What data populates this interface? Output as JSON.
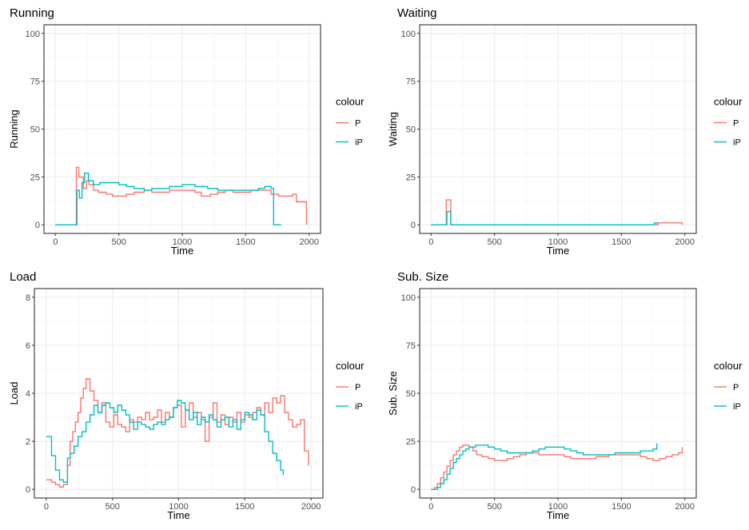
{
  "colors": {
    "P": "#F8766D",
    "iP": "#00BFC4"
  },
  "chart_data": [
    {
      "type": "line",
      "title": "Running",
      "xlabel": "Time",
      "ylabel": "Running",
      "xlim": [
        0,
        2000
      ],
      "ylim": [
        0,
        100
      ],
      "x_ticks": [
        0,
        500,
        1000,
        1500,
        2000
      ],
      "y_ticks": [
        0,
        25,
        50,
        75,
        100
      ],
      "grid": true,
      "legend": {
        "title": "colour",
        "position": "right",
        "entries": [
          "P",
          "iP"
        ]
      },
      "series": [
        {
          "name": "P",
          "color": "#F8766D",
          "step": true,
          "x": [
            0,
            150,
            165,
            185,
            220,
            245,
            265,
            300,
            340,
            400,
            450,
            500,
            560,
            620,
            700,
            760,
            830,
            900,
            980,
            1050,
            1100,
            1150,
            1220,
            1280,
            1340,
            1400,
            1480,
            1540,
            1620,
            1700,
            1760,
            1830,
            1870,
            1900,
            1980
          ],
          "y": [
            0,
            0,
            30,
            25,
            19,
            23,
            21,
            18,
            17,
            16,
            15,
            15,
            16,
            17,
            18,
            17,
            17,
            18,
            18,
            18,
            17,
            15,
            16,
            17,
            18,
            17,
            17,
            18,
            18,
            16,
            15,
            15,
            16,
            12,
            0
          ]
        },
        {
          "name": "iP",
          "color": "#00BFC4",
          "step": true,
          "x": [
            0,
            155,
            170,
            190,
            210,
            230,
            260,
            300,
            350,
            400,
            450,
            500,
            560,
            620,
            700,
            760,
            830,
            900,
            1000,
            1060,
            1100,
            1200,
            1280,
            1340,
            1400,
            1480,
            1540,
            1600,
            1650,
            1700,
            1720,
            1780
          ],
          "y": [
            0,
            0,
            18,
            14,
            22,
            27,
            23,
            21,
            22,
            22,
            22,
            21,
            20,
            19,
            18,
            19,
            19,
            20,
            21,
            21,
            20,
            19,
            18,
            18,
            18,
            18,
            18,
            19,
            20,
            19,
            0,
            0
          ]
        }
      ]
    },
    {
      "type": "line",
      "title": "Waiting",
      "xlabel": "Time",
      "ylabel": "Waiting",
      "xlim": [
        0,
        2000
      ],
      "ylim": [
        0,
        100
      ],
      "x_ticks": [
        0,
        500,
        1000,
        1500,
        2000
      ],
      "y_ticks": [
        0,
        25,
        50,
        75,
        100
      ],
      "grid": true,
      "legend": {
        "title": "colour",
        "position": "right",
        "entries": [
          "P",
          "iP"
        ]
      },
      "series": [
        {
          "name": "P",
          "color": "#F8766D",
          "step": true,
          "x": [
            0,
            120,
            155,
            1760,
            1790,
            1960,
            1980
          ],
          "y": [
            0,
            13,
            0,
            0,
            1,
            1,
            0
          ]
        },
        {
          "name": "iP",
          "color": "#00BFC4",
          "step": true,
          "x": [
            0,
            125,
            155,
            1760,
            1790
          ],
          "y": [
            0,
            7,
            0,
            1,
            1
          ]
        }
      ]
    },
    {
      "type": "line",
      "title": "Load",
      "xlabel": "Time",
      "ylabel": "Load",
      "xlim": [
        0,
        2000
      ],
      "ylim": [
        0,
        8
      ],
      "x_ticks": [
        0,
        500,
        1000,
        1500,
        2000
      ],
      "y_ticks": [
        0,
        2,
        4,
        6,
        8
      ],
      "grid": true,
      "legend": {
        "title": "colour",
        "position": "right",
        "entries": [
          "P",
          "iP"
        ]
      },
      "series": [
        {
          "name": "P",
          "color": "#F8766D",
          "step": true,
          "x": [
            0,
            40,
            70,
            100,
            130,
            160,
            180,
            200,
            220,
            240,
            260,
            280,
            300,
            330,
            360,
            390,
            420,
            450,
            480,
            510,
            540,
            570,
            600,
            630,
            660,
            690,
            720,
            750,
            780,
            810,
            840,
            870,
            900,
            930,
            960,
            990,
            1020,
            1050,
            1080,
            1110,
            1140,
            1170,
            1200,
            1230,
            1260,
            1290,
            1320,
            1350,
            1380,
            1410,
            1440,
            1470,
            1500,
            1530,
            1560,
            1590,
            1620,
            1650,
            1680,
            1710,
            1740,
            1770,
            1800,
            1830,
            1860,
            1890,
            1920,
            1950,
            1980
          ],
          "y": [
            0.4,
            0.3,
            0.2,
            0.1,
            0.2,
            1.0,
            2.0,
            2.4,
            2.8,
            3.2,
            3.8,
            4.2,
            4.6,
            4.1,
            3.7,
            3.2,
            3.6,
            2.8,
            2.6,
            3.1,
            2.7,
            2.6,
            2.4,
            2.9,
            2.8,
            3.0,
            2.9,
            3.2,
            2.9,
            3.0,
            3.3,
            2.8,
            3.2,
            3.0,
            3.4,
            3.5,
            2.6,
            3.3,
            3.6,
            3.0,
            3.2,
            2.9,
            2.0,
            3.0,
            3.6,
            2.8,
            3.1,
            2.7,
            3.0,
            2.8,
            3.2,
            2.8,
            3.1,
            3.0,
            3.2,
            3.4,
            3.1,
            3.6,
            3.2,
            3.8,
            3.6,
            3.9,
            3.2,
            2.9,
            2.6,
            2.7,
            2.9,
            1.6,
            1.0
          ]
        },
        {
          "name": "iP",
          "color": "#00BFC4",
          "step": true,
          "x": [
            0,
            40,
            70,
            100,
            130,
            160,
            180,
            210,
            240,
            270,
            300,
            330,
            360,
            390,
            420,
            450,
            480,
            510,
            540,
            570,
            600,
            630,
            660,
            690,
            720,
            750,
            780,
            810,
            840,
            870,
            900,
            930,
            960,
            990,
            1020,
            1050,
            1080,
            1110,
            1140,
            1170,
            1200,
            1230,
            1260,
            1290,
            1320,
            1350,
            1380,
            1410,
            1440,
            1470,
            1500,
            1530,
            1560,
            1590,
            1620,
            1650,
            1680,
            1710,
            1740,
            1770,
            1790
          ],
          "y": [
            2.2,
            1.4,
            0.8,
            0.4,
            0.3,
            1.3,
            1.5,
            1.8,
            2.2,
            2.4,
            2.8,
            3.1,
            3.5,
            3.2,
            3.5,
            3.6,
            3.4,
            3.2,
            3.5,
            3.3,
            3.1,
            2.8,
            2.5,
            2.8,
            2.7,
            2.6,
            2.5,
            2.7,
            2.8,
            2.7,
            2.9,
            3.0,
            3.4,
            3.7,
            3.6,
            3.3,
            2.9,
            3.2,
            2.7,
            3.0,
            2.8,
            3.1,
            2.9,
            2.6,
            2.9,
            3.0,
            2.6,
            2.9,
            2.5,
            2.9,
            3.2,
            3.1,
            2.9,
            3.3,
            3.1,
            2.4,
            2.0,
            1.5,
            1.2,
            0.8,
            0.6
          ]
        }
      ]
    },
    {
      "type": "line",
      "title": "Sub. Size",
      "xlabel": "Time",
      "ylabel": "Sub. Size",
      "xlim": [
        0,
        2000
      ],
      "ylim": [
        0,
        100
      ],
      "x_ticks": [
        0,
        500,
        1000,
        1500,
        2000
      ],
      "y_ticks": [
        0,
        25,
        50,
        75,
        100
      ],
      "grid": true,
      "legend": {
        "title": "colour",
        "position": "right",
        "entries": [
          "P",
          "iP"
        ]
      },
      "series": [
        {
          "name": "P",
          "color": "#F8766D",
          "step": true,
          "x": [
            0,
            25,
            50,
            75,
            100,
            125,
            150,
            175,
            200,
            225,
            250,
            275,
            300,
            330,
            360,
            400,
            450,
            500,
            550,
            600,
            650,
            700,
            750,
            800,
            850,
            900,
            950,
            1000,
            1050,
            1100,
            1150,
            1200,
            1250,
            1300,
            1350,
            1400,
            1450,
            1500,
            1550,
            1600,
            1650,
            1700,
            1750,
            1800,
            1850,
            1900,
            1950,
            1980
          ],
          "y": [
            0,
            1,
            3,
            6,
            9,
            12,
            15,
            18,
            20,
            22,
            23,
            23,
            22,
            20,
            18,
            17,
            16,
            15,
            15,
            16,
            17,
            18,
            19,
            19,
            18,
            18,
            18,
            18,
            17,
            16,
            16,
            16,
            16,
            17,
            17,
            18,
            18,
            18,
            18,
            18,
            17,
            16,
            15,
            16,
            17,
            18,
            19,
            22
          ]
        },
        {
          "name": "iP",
          "color": "#00BFC4",
          "step": true,
          "x": [
            0,
            25,
            50,
            75,
            100,
            125,
            150,
            175,
            200,
            225,
            250,
            275,
            300,
            350,
            400,
            450,
            500,
            550,
            600,
            650,
            700,
            750,
            800,
            850,
            900,
            950,
            1000,
            1050,
            1100,
            1150,
            1200,
            1250,
            1300,
            1350,
            1400,
            1450,
            1500,
            1550,
            1600,
            1650,
            1700,
            1750,
            1780
          ],
          "y": [
            0,
            0,
            1,
            3,
            5,
            8,
            11,
            14,
            16,
            18,
            20,
            21,
            22,
            23,
            23,
            22,
            21,
            20,
            19,
            19,
            19,
            19,
            20,
            21,
            22,
            22,
            22,
            21,
            20,
            19,
            18,
            18,
            18,
            18,
            18,
            19,
            19,
            19,
            19,
            20,
            20,
            21,
            24
          ]
        }
      ]
    }
  ]
}
